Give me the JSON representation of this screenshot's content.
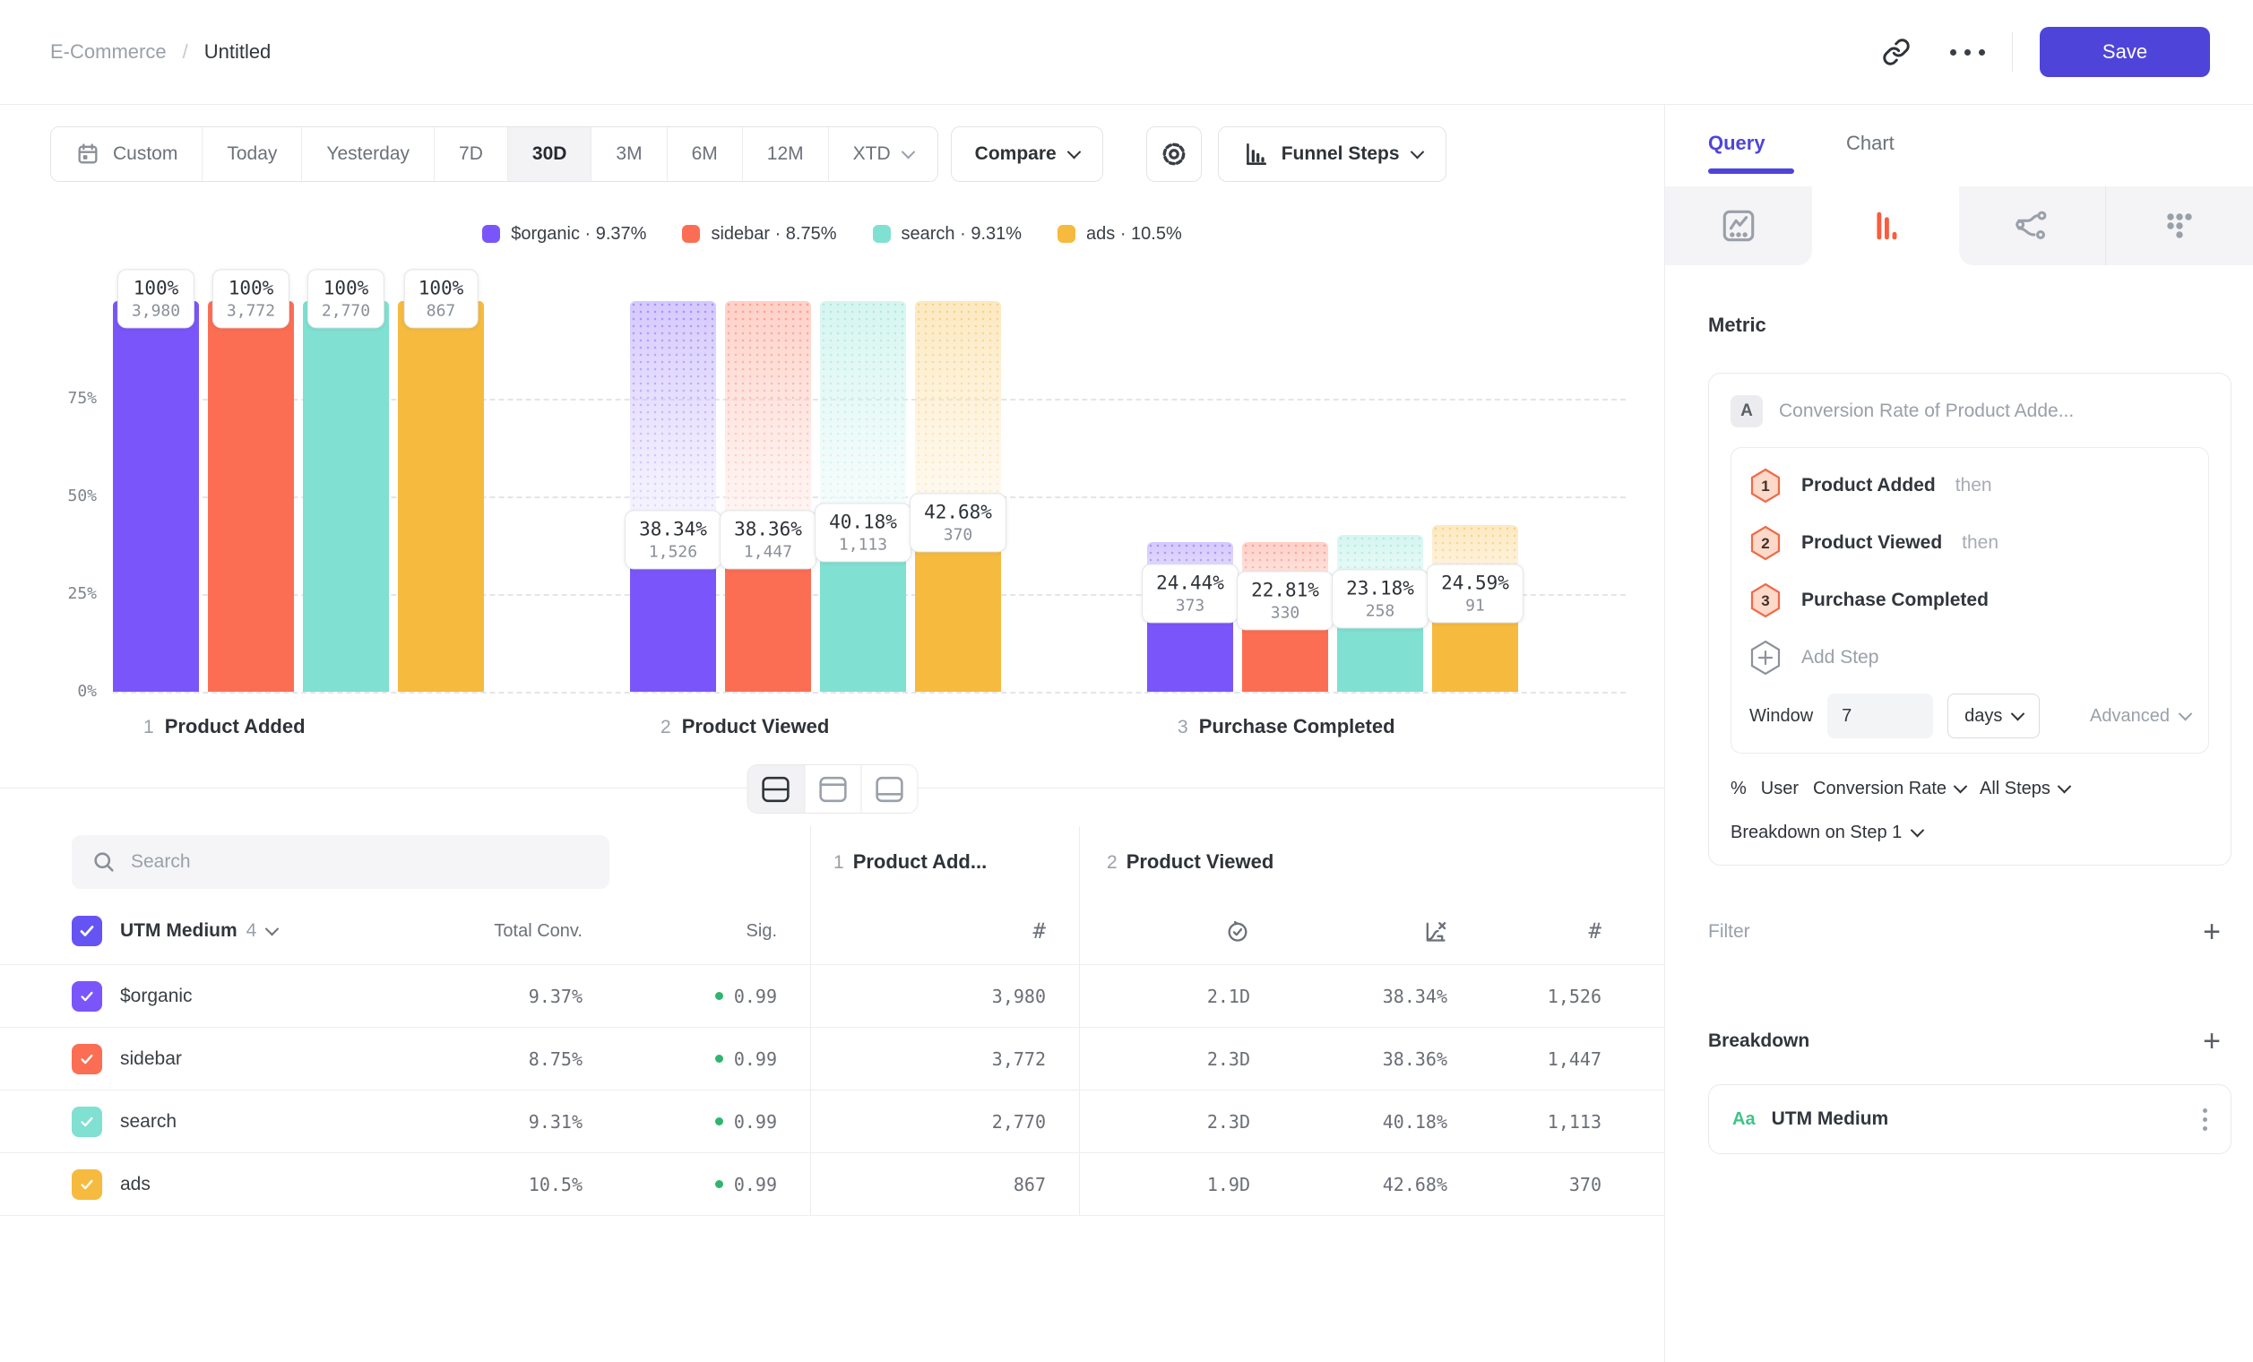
{
  "topbar": {
    "breadcrumb_folder": "E-Commerce",
    "breadcrumb_sep": "/",
    "breadcrumb_title": "Untitled",
    "save_label": "Save"
  },
  "toolbar": {
    "ranges": [
      {
        "label": "Custom",
        "icon": "calendar"
      },
      {
        "label": "Today"
      },
      {
        "label": "Yesterday"
      },
      {
        "label": "7D"
      },
      {
        "label": "30D",
        "selected": true
      },
      {
        "label": "3M"
      },
      {
        "label": "6M"
      },
      {
        "label": "12M"
      },
      {
        "label": "XTD",
        "chevron": true
      }
    ],
    "compare_label": "Compare",
    "view_label": "Funnel Steps"
  },
  "icons": {
    "topbar": [
      "link-icon",
      "ellipsis-icon"
    ],
    "toolbar": [
      "calendar-icon",
      "gear-icon",
      "funnel-chart-icon",
      "chevron-down-icon"
    ],
    "panel_tabs": [
      "insights-icon",
      "funnel-icon",
      "flows-icon",
      "retention-icon"
    ],
    "table": [
      "search-icon",
      "count-icon",
      "time-icon",
      "conversion-icon",
      "kebab-icon"
    ],
    "view_toggle": [
      "split-view-icon",
      "chart-view-icon",
      "table-view-icon"
    ]
  },
  "colors": {
    "accent": "#4f44d9",
    "purple": "#7a56fa",
    "coral": "#fc6e53",
    "teal": "#80e0d1",
    "amber": "#f6ba3f",
    "sig_green": "#2fb56e"
  },
  "chart_data": {
    "type": "bar",
    "title": "Funnel Steps",
    "legend_position": "top",
    "legend_separator": "·",
    "grid": true,
    "ylim": [
      0,
      100
    ],
    "yticks": [
      {
        "pct": 0,
        "label": "0%"
      },
      {
        "pct": 25,
        "label": "25%"
      },
      {
        "pct": 50,
        "label": "50%"
      },
      {
        "pct": 75,
        "label": "75%"
      }
    ],
    "series": [
      {
        "name": "$organic",
        "overall": "9.37%",
        "color": "#7a56fa"
      },
      {
        "name": "sidebar",
        "overall": "8.75%",
        "color": "#fc6e53"
      },
      {
        "name": "search",
        "overall": "9.31%",
        "color": "#80e0d1"
      },
      {
        "name": "ads",
        "overall": "10.5%",
        "color": "#f6ba3f"
      }
    ],
    "steps": [
      {
        "num": "1",
        "label": "Product Added",
        "values": [
          {
            "pct": 100,
            "pct_label": "100%",
            "count": "3,980"
          },
          {
            "pct": 100,
            "pct_label": "100%",
            "count": "3,772"
          },
          {
            "pct": 100,
            "pct_label": "100%",
            "count": "2,770"
          },
          {
            "pct": 100,
            "pct_label": "100%",
            "count": "867"
          }
        ]
      },
      {
        "num": "2",
        "label": "Product Viewed",
        "values": [
          {
            "pct": 38.34,
            "pct_label": "38.34%",
            "count": "1,526"
          },
          {
            "pct": 38.36,
            "pct_label": "38.36%",
            "count": "1,447"
          },
          {
            "pct": 40.18,
            "pct_label": "40.18%",
            "count": "1,113"
          },
          {
            "pct": 42.68,
            "pct_label": "42.68%",
            "count": "370"
          }
        ]
      },
      {
        "num": "3",
        "label": "Purchase Completed",
        "values": [
          {
            "pct": 24.44,
            "pct_label": "24.44%",
            "count": "373"
          },
          {
            "pct": 22.81,
            "pct_label": "22.81%",
            "count": "330"
          },
          {
            "pct": 23.18,
            "pct_label": "23.18%",
            "count": "258"
          },
          {
            "pct": 24.59,
            "pct_label": "24.59%",
            "count": "91"
          }
        ]
      }
    ]
  },
  "table": {
    "search_placeholder": "Search",
    "group_label": "UTM Medium",
    "group_count": "4",
    "col_total": "Total Conv.",
    "col_sig": "Sig.",
    "step_cols": [
      {
        "num": "1",
        "label": "Product Add..."
      },
      {
        "num": "2",
        "label": "Product Viewed"
      }
    ],
    "rows": [
      {
        "name": "$organic",
        "color": "#7a56fa",
        "total": "9.37%",
        "sig": "0.99",
        "pa_count": "3,980",
        "pv_time": "2.1D",
        "pv_conv": "38.34%",
        "pv_count": "1,526"
      },
      {
        "name": "sidebar",
        "color": "#fc6e53",
        "total": "8.75%",
        "sig": "0.99",
        "pa_count": "3,772",
        "pv_time": "2.3D",
        "pv_conv": "38.36%",
        "pv_count": "1,447"
      },
      {
        "name": "search",
        "color": "#80e0d1",
        "total": "9.31%",
        "sig": "0.99",
        "pa_count": "2,770",
        "pv_time": "2.3D",
        "pv_conv": "40.18%",
        "pv_count": "1,113"
      },
      {
        "name": "ads",
        "color": "#f6ba3f",
        "total": "10.5%",
        "sig": "0.99",
        "pa_count": "867",
        "pv_time": "1.9D",
        "pv_conv": "42.68%",
        "pv_count": "370"
      }
    ]
  },
  "panel": {
    "tabs": [
      {
        "label": "Query",
        "active": true
      },
      {
        "label": "Chart",
        "active": false
      }
    ],
    "metric_heading": "Metric",
    "metric_badge": "A",
    "metric_title": "Conversion Rate of Product Adde...",
    "steps": [
      {
        "num": "1",
        "label": "Product Added",
        "suffix": "then"
      },
      {
        "num": "2",
        "label": "Product Viewed",
        "suffix": "then"
      },
      {
        "num": "3",
        "label": "Purchase Completed",
        "suffix": ""
      }
    ],
    "add_step_label": "Add Step",
    "window_label": "Window",
    "window_value": "7",
    "window_unit": "days",
    "advanced_label": "Advanced",
    "measure_prefix": "%",
    "measure_entity": "User",
    "measure_type": "Conversion Rate",
    "measure_scope": "All Steps",
    "breakdown_on": "Breakdown on Step 1",
    "filter_heading": "Filter",
    "filter_add": "+",
    "breakdown_heading": "Breakdown",
    "breakdown_add": "+",
    "breakdown_item": {
      "icon": "Aa",
      "label": "UTM Medium"
    }
  }
}
